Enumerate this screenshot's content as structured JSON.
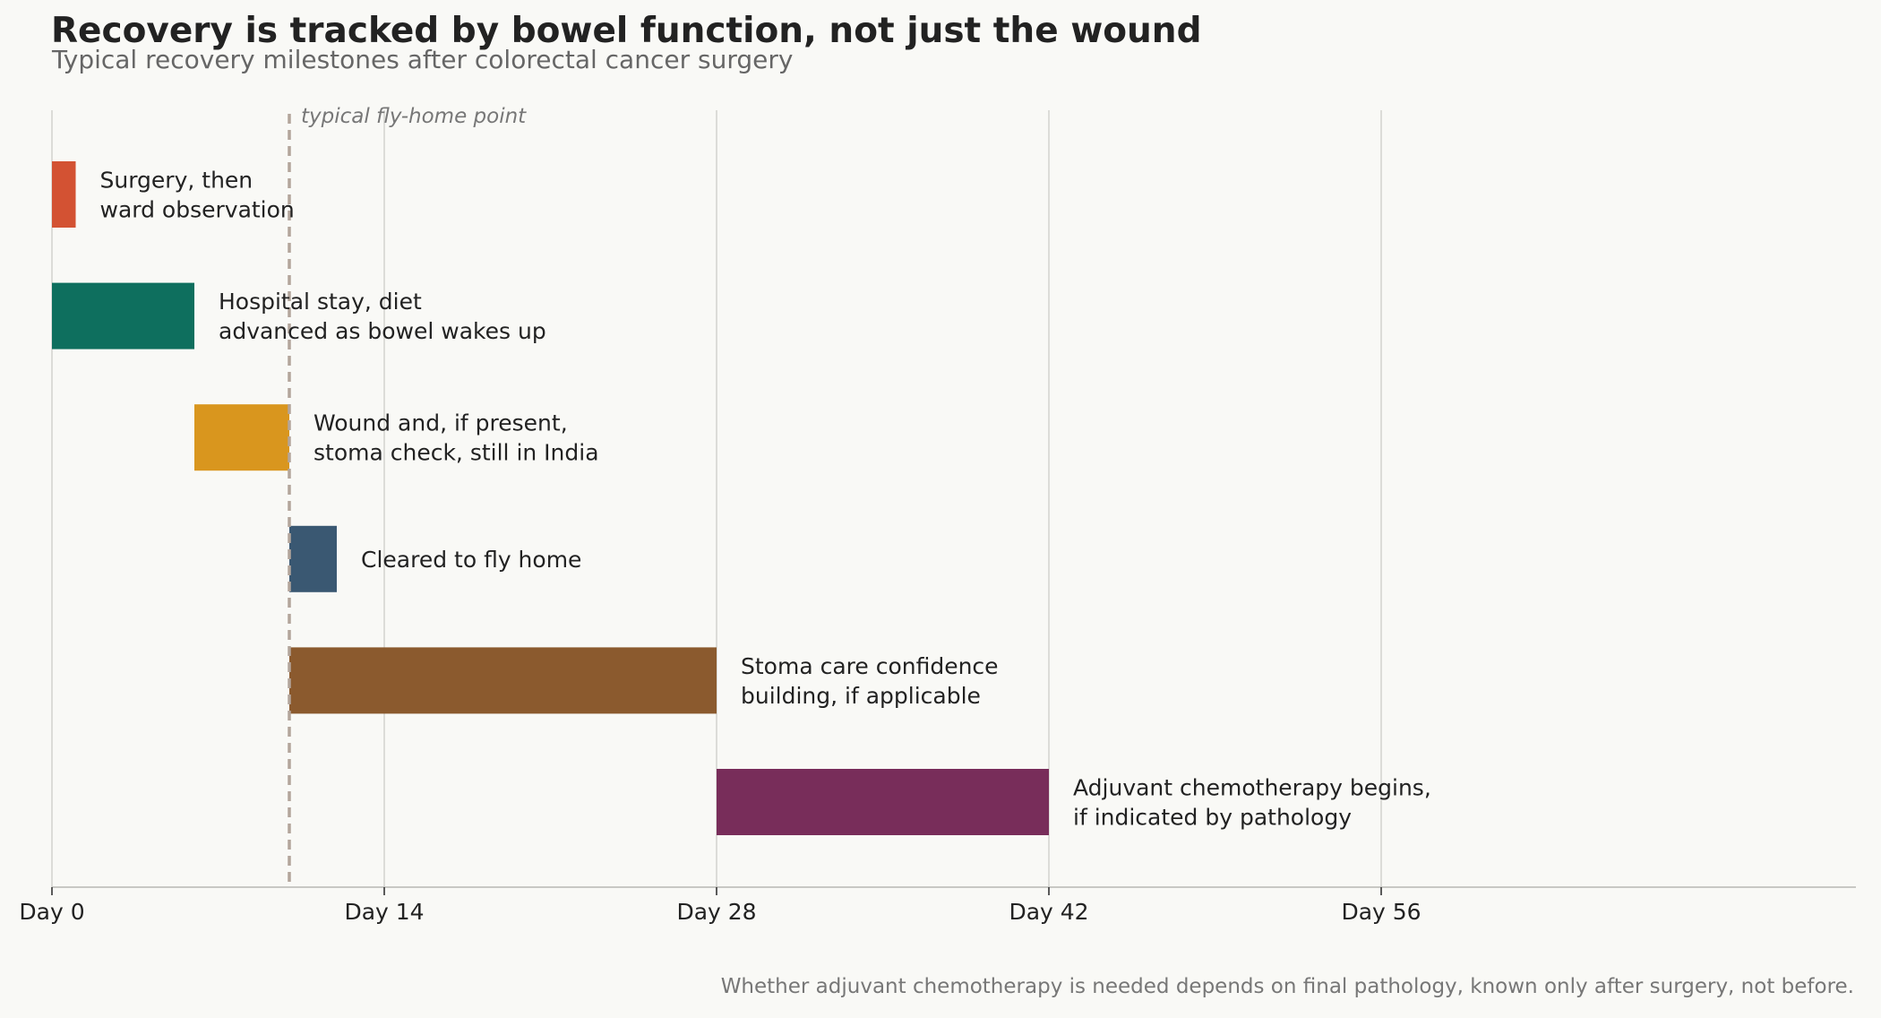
{
  "title": "Recovery is tracked by bowel function, not just the wound",
  "subtitle": "Typical recovery milestones after colorectal cancer surgery",
  "footnote": "Whether adjuvant chemotherapy is needed depends on final pathology, known only after surgery, not before.",
  "chart_data": {
    "type": "bar",
    "orientation": "horizontal",
    "xlim": [
      0,
      76
    ],
    "x_ticks": [
      0,
      14,
      28,
      42,
      56
    ],
    "x_tick_labels": [
      "Day 0",
      "Day 14",
      "Day 28",
      "Day 42",
      "Day 56"
    ],
    "grid": "vertical",
    "reference_line": {
      "x": 10,
      "label": "typical fly-home point",
      "color": "#b3a59b",
      "style": "dashed"
    },
    "bars": [
      {
        "label_lines": [
          "Surgery, then",
          "ward observation"
        ],
        "start": 0,
        "end": 1,
        "color": "#d35233"
      },
      {
        "label_lines": [
          "Hospital stay, diet",
          "advanced as bowel wakes up"
        ],
        "start": 0,
        "end": 6,
        "color": "#0e6f5e"
      },
      {
        "label_lines": [
          "Wound and, if present,",
          "stoma check, still in India"
        ],
        "start": 6,
        "end": 10,
        "color": "#d9961e"
      },
      {
        "label_lines": [
          "Cleared to fly home"
        ],
        "start": 10,
        "end": 12,
        "color": "#3a5872"
      },
      {
        "label_lines": [
          "Stoma care confidence",
          "building, if applicable"
        ],
        "start": 10,
        "end": 28,
        "color": "#8b5a2e"
      },
      {
        "label_lines": [
          "Adjuvant chemotherapy begins,",
          "if indicated by pathology"
        ],
        "start": 28,
        "end": 42,
        "color": "#782d5a"
      }
    ]
  }
}
